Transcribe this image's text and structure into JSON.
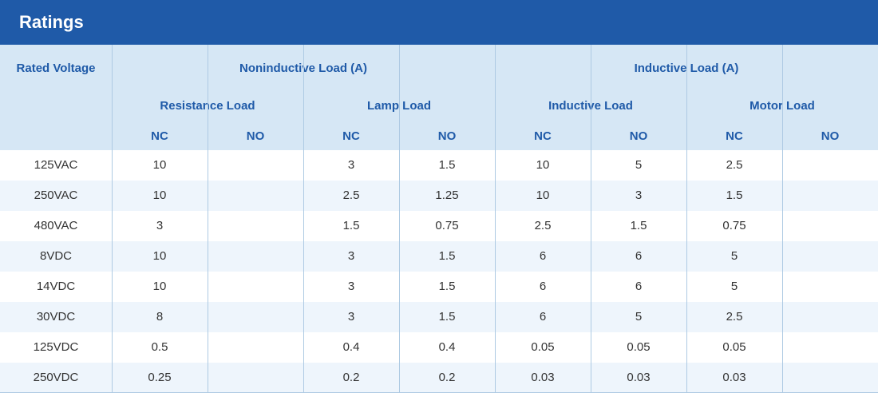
{
  "title": "Ratings",
  "headers": {
    "rated_voltage": "Rated Voltage",
    "noninductive": "Noninductive Load (A)",
    "inductive": "Inductive Load (A)",
    "resistance_load": "Resistance Load",
    "lamp_load": "Lamp Load",
    "inductive_load": "Inductive Load",
    "motor_load": "Motor Load",
    "sub": [
      "NC",
      "NO",
      "NC",
      "NO",
      "NC",
      "NO",
      "NC",
      "NO"
    ]
  },
  "rows": [
    [
      "125VAC",
      "10",
      "",
      "3",
      "1.5",
      "10",
      "5",
      "2.5",
      ""
    ],
    [
      "250VAC",
      "10",
      "",
      "2.5",
      "1.25",
      "10",
      "3",
      "1.5",
      ""
    ],
    [
      "480VAC",
      "3",
      "",
      "1.5",
      "0.75",
      "2.5",
      "1.5",
      "0.75",
      ""
    ],
    [
      "8VDC",
      "10",
      "",
      "3",
      "1.5",
      "6",
      "6",
      "5",
      ""
    ],
    [
      "14VDC",
      "10",
      "",
      "3",
      "1.5",
      "6",
      "6",
      "5",
      ""
    ],
    [
      "30VDC",
      "8",
      "",
      "3",
      "1.5",
      "6",
      "5",
      "2.5",
      ""
    ],
    [
      "125VDC",
      "0.5",
      "",
      "0.4",
      "0.4",
      "0.05",
      "0.05",
      "0.05",
      ""
    ],
    [
      "250VDC",
      "0.25",
      "",
      "0.2",
      "0.2",
      "0.03",
      "0.03",
      "0.03",
      ""
    ]
  ],
  "colors": {
    "title_bar": "#1f5aa8",
    "header_bg": "#d6e7f5",
    "header_text": "#1f5aa8",
    "row_alt": "#eef5fc",
    "grid_line": "#aecae3"
  }
}
